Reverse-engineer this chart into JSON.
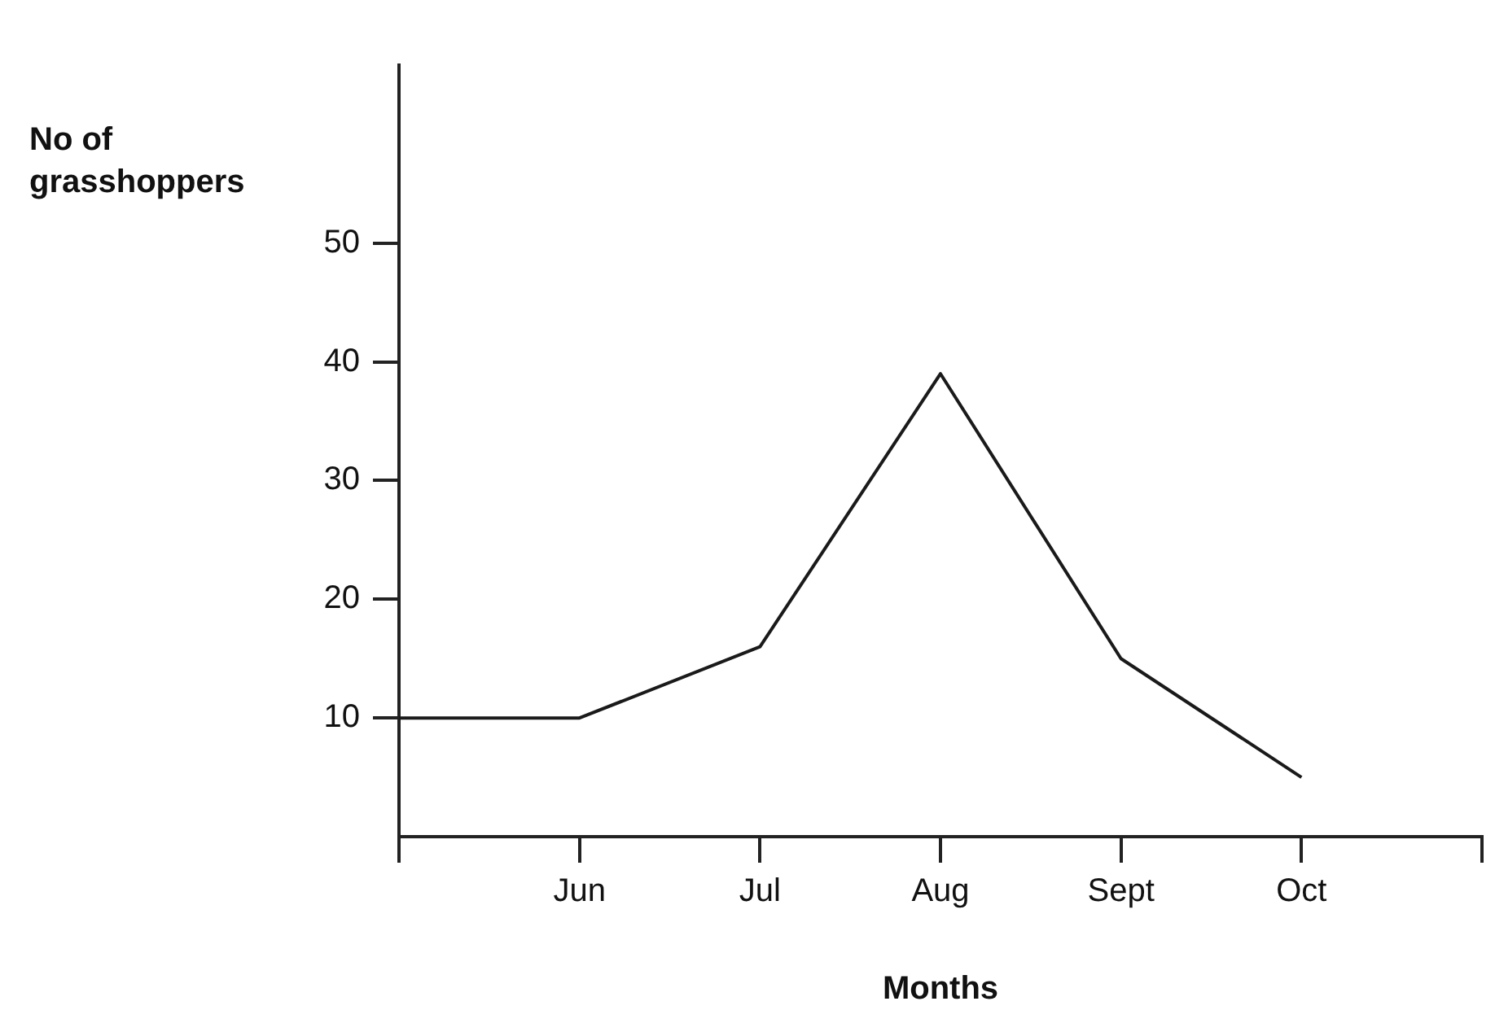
{
  "chart_data": {
    "type": "line",
    "xlabel": "Months",
    "ylabel": "No of grasshoppers",
    "categories": [
      null,
      "Jun",
      "Jul",
      "Aug",
      "Sept",
      "Oct",
      null
    ],
    "series": [
      {
        "color": "#1a1a1a",
        "values": [
          10,
          10,
          16,
          39,
          15,
          5,
          null
        ]
      }
    ],
    "ylim": [
      0,
      65
    ],
    "yticks": [
      10,
      20,
      30,
      40,
      50
    ],
    "grid": false,
    "legend": false,
    "marker": "none",
    "line_style": "solid"
  }
}
